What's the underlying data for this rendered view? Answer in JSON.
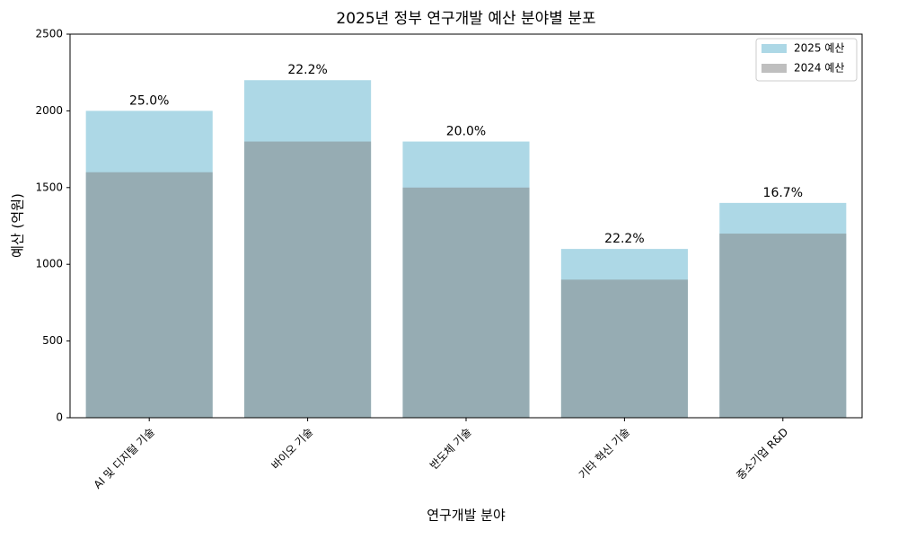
{
  "chart_data": {
    "type": "bar",
    "title": "2025년 정부 연구개발 예산 분야별 분포",
    "x_label": "연구개발 분야",
    "y_label": "예산 (억원)",
    "categories": [
      "AI 및 디지털 기술",
      "바이오 기술",
      "반도체 기술",
      "기타 혁신 기술",
      "중소기업 R&D"
    ],
    "series": [
      {
        "name": "2025 예산",
        "color": "#add8e6",
        "values": [
          2000,
          2200,
          1800,
          1100,
          1400
        ]
      },
      {
        "name": "2024 예산",
        "color": "#808080",
        "values": [
          1600,
          1800,
          1500,
          900,
          1200
        ]
      }
    ],
    "annotations": [
      "25.0%",
      "22.2%",
      "20.0%",
      "22.2%",
      "16.7%"
    ],
    "ylim": [
      0,
      2500
    ],
    "yticks": [
      0,
      500,
      1000,
      1500,
      2000,
      2500
    ],
    "legend": "upper right"
  }
}
